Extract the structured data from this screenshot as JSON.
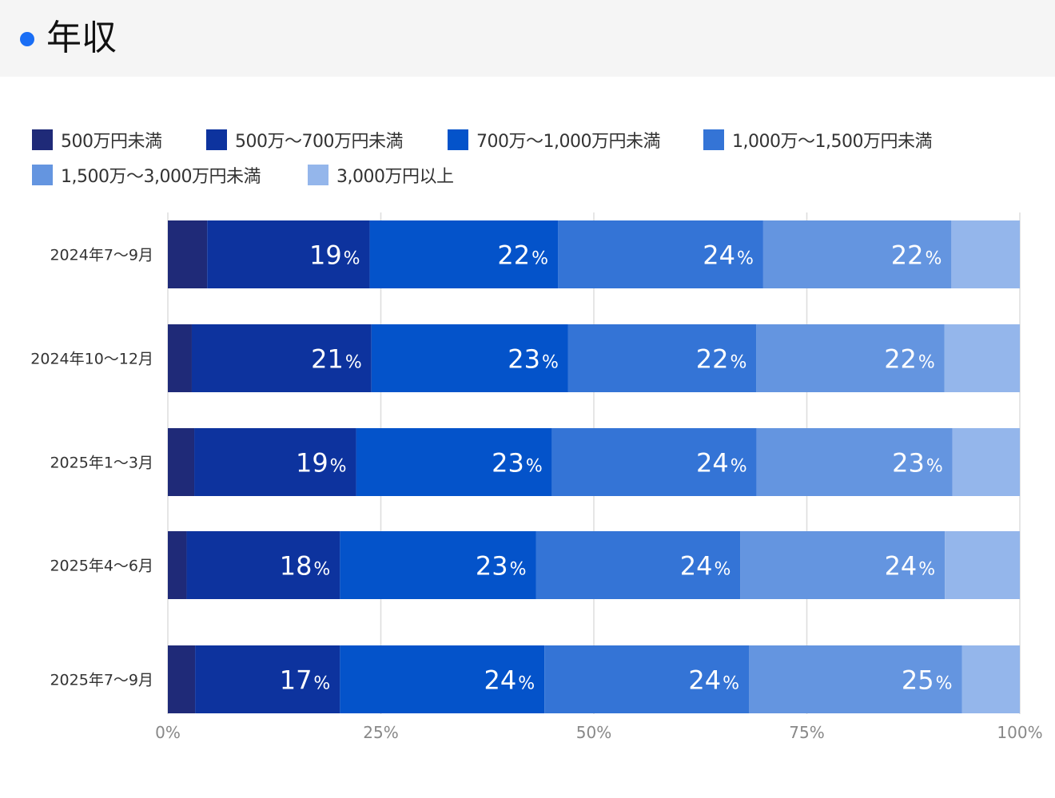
{
  "header": {
    "title": "年収",
    "dot_color": "#1a6ef5"
  },
  "chart_data": {
    "type": "bar",
    "orientation": "horizontal",
    "stacked": true,
    "percent": true,
    "title": "年収",
    "categories": [
      "2024年7〜9月",
      "2024年10〜12月",
      "2025年1〜3月",
      "2025年4〜6月",
      "2025年7〜9月"
    ],
    "series": [
      {
        "name": "500万円未満",
        "color": "#1f2a78",
        "values": [
          4.6,
          2.8,
          3.1,
          2.2,
          3.2
        ]
      },
      {
        "name": "500万〜700万円未満",
        "color": "#0d339e",
        "values": [
          19,
          21,
          19,
          18,
          17
        ]
      },
      {
        "name": "700万〜1,000万円未満",
        "color": "#0453ca",
        "values": [
          22,
          23,
          23,
          23,
          24
        ]
      },
      {
        "name": "1,000万〜1,500万円未満",
        "color": "#3474d6",
        "values": [
          24,
          22,
          24,
          24,
          24
        ]
      },
      {
        "name": "1,500万〜3,000万円未満",
        "color": "#6495e0",
        "values": [
          22,
          22,
          23,
          24,
          25
        ]
      },
      {
        "name": "3,000万円以上",
        "color": "#94b6eb",
        "values": [
          8,
          8.8,
          7.9,
          8.8,
          6.8
        ]
      }
    ],
    "data_labels": [
      [
        null,
        "19",
        "22",
        "24",
        "22",
        null
      ],
      [
        null,
        "21",
        "23",
        "22",
        "22",
        null
      ],
      [
        null,
        "19",
        "23",
        "24",
        "23",
        null
      ],
      [
        null,
        "18",
        "23",
        "24",
        "24",
        null
      ],
      [
        null,
        "17",
        "24",
        "24",
        "25",
        null
      ]
    ],
    "label_suffix": "%",
    "xlim": [
      0,
      100
    ],
    "xticks": [
      {
        "value": 0,
        "label": "0%"
      },
      {
        "value": 25,
        "label": "25%"
      },
      {
        "value": 50,
        "label": "50%"
      },
      {
        "value": 75,
        "label": "75%"
      },
      {
        "value": 100,
        "label": "100%"
      }
    ],
    "grid": true,
    "legend_position": "top"
  }
}
